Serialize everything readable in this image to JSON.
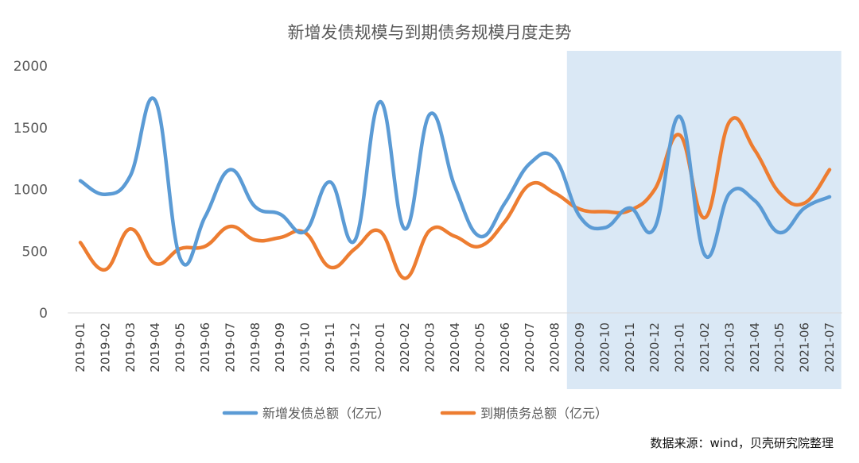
{
  "chart_data": {
    "type": "line",
    "title": "新增发债规模与到期债务规模月度走势",
    "xlabel": "",
    "ylabel": "",
    "ylim": [
      0,
      2000
    ],
    "yticks": [
      "0",
      "500",
      "1000",
      "1500",
      "2000"
    ],
    "grid": false,
    "legend_position": "bottom",
    "categories": [
      "2019-01",
      "2019-02",
      "2019-03",
      "2019-04",
      "2019-05",
      "2019-06",
      "2019-07",
      "2019-08",
      "2019-09",
      "2019-10",
      "2019-11",
      "2019-12",
      "2020-01",
      "2020-02",
      "2020-03",
      "2020-04",
      "2020-05",
      "2020-06",
      "2020-07",
      "2020-08",
      "2020-09",
      "2020-10",
      "2020-11",
      "2020-12",
      "2021-01",
      "2021-02",
      "2021-03",
      "2021-04",
      "2021-05",
      "2021-06",
      "2021-07"
    ],
    "series": [
      {
        "name": "新增发债总额（亿元）",
        "color": "#5B9BD5",
        "values": [
          1070,
          960,
          1110,
          1720,
          440,
          780,
          1160,
          860,
          800,
          660,
          1060,
          590,
          1710,
          680,
          1610,
          1020,
          620,
          890,
          1210,
          1250,
          780,
          690,
          850,
          690,
          1590,
          470,
          970,
          910,
          650,
          850,
          940
        ]
      },
      {
        "name": "到期债务总额（亿元）",
        "color": "#ED7D31",
        "values": [
          570,
          350,
          680,
          400,
          520,
          540,
          700,
          590,
          610,
          650,
          370,
          520,
          660,
          280,
          670,
          620,
          540,
          740,
          1040,
          970,
          840,
          820,
          830,
          1000,
          1440,
          770,
          1550,
          1320,
          970,
          890,
          1160
        ]
      }
    ],
    "highlight": {
      "from": "2020-09",
      "to": "2021-07",
      "color": "#DAE8F5"
    }
  },
  "source_note": "数据来源：wind，贝壳研究院整理"
}
